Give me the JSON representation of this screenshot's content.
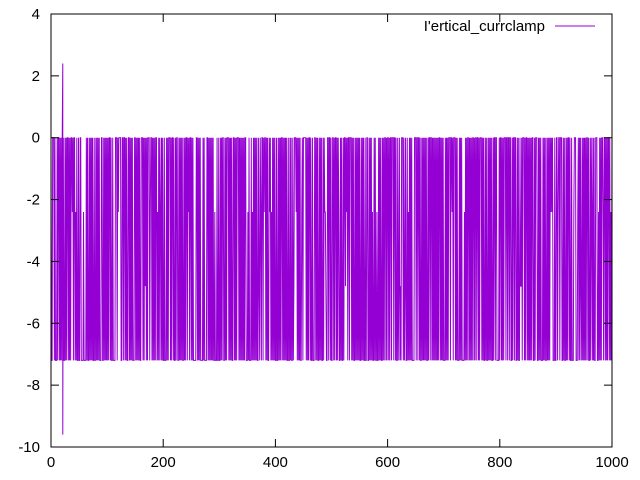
{
  "chart_data": {
    "type": "line",
    "series": [
      {
        "name": "I'ertical_currclamp",
        "color": "#9400d3",
        "x_range": [
          0,
          1000
        ],
        "pattern": "dense alternation between 0 and -7.2 (some dips near -2.4 and -4.8)",
        "notable_points": [
          {
            "x": 21,
            "y": 2.4
          },
          {
            "x": 21,
            "y": -9.6
          },
          {
            "x": 490,
            "y": -4.8
          },
          {
            "x": 945,
            "y": -4.8
          }
        ],
        "typical_values": [
          0,
          -7.2,
          -2.4,
          -4.8
        ]
      }
    ],
    "xlim": [
      0,
      1000
    ],
    "ylim": [
      -10,
      4
    ],
    "xticks": [
      "0",
      "200",
      "400",
      "600",
      "800",
      "1000"
    ],
    "yticks": [
      "4",
      "2",
      "0",
      "-2",
      "-4",
      "-6",
      "-8",
      "-10"
    ],
    "grid": false,
    "legend_position": "top-right"
  }
}
